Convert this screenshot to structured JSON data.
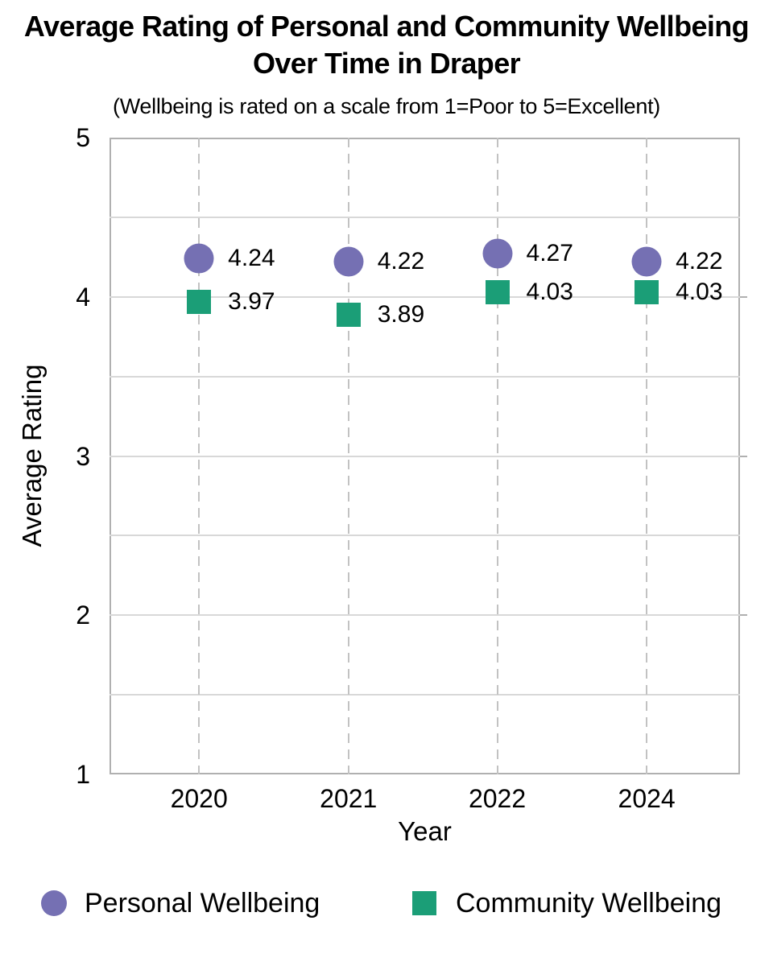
{
  "chart_data": {
    "type": "scatter",
    "title": "Average Rating of Personal and Community Wellbeing\nOver Time in Draper",
    "subtitle": "(Wellbeing is rated on a scale from 1=Poor to 5=Excellent)",
    "xlabel": "Year",
    "ylabel": "Average Rating",
    "categories": [
      "2020",
      "2021",
      "2022",
      "2024"
    ],
    "series": [
      {
        "name": "Personal Wellbeing",
        "marker": "circle",
        "color": "#7570B3",
        "values": [
          4.24,
          4.22,
          4.27,
          4.22
        ]
      },
      {
        "name": "Community Wellbeing",
        "marker": "square",
        "color": "#1B9E77",
        "values": [
          3.97,
          3.89,
          4.03,
          4.03
        ]
      }
    ],
    "ylim": [
      1,
      5
    ],
    "yticks": [
      1,
      2,
      3,
      4,
      5
    ],
    "grid": {
      "horizontal_step": 0.5,
      "vertical_dashed_at_categories": true
    },
    "data_labels": true,
    "data_label_decimals": 2,
    "legend_position": "bottom"
  }
}
